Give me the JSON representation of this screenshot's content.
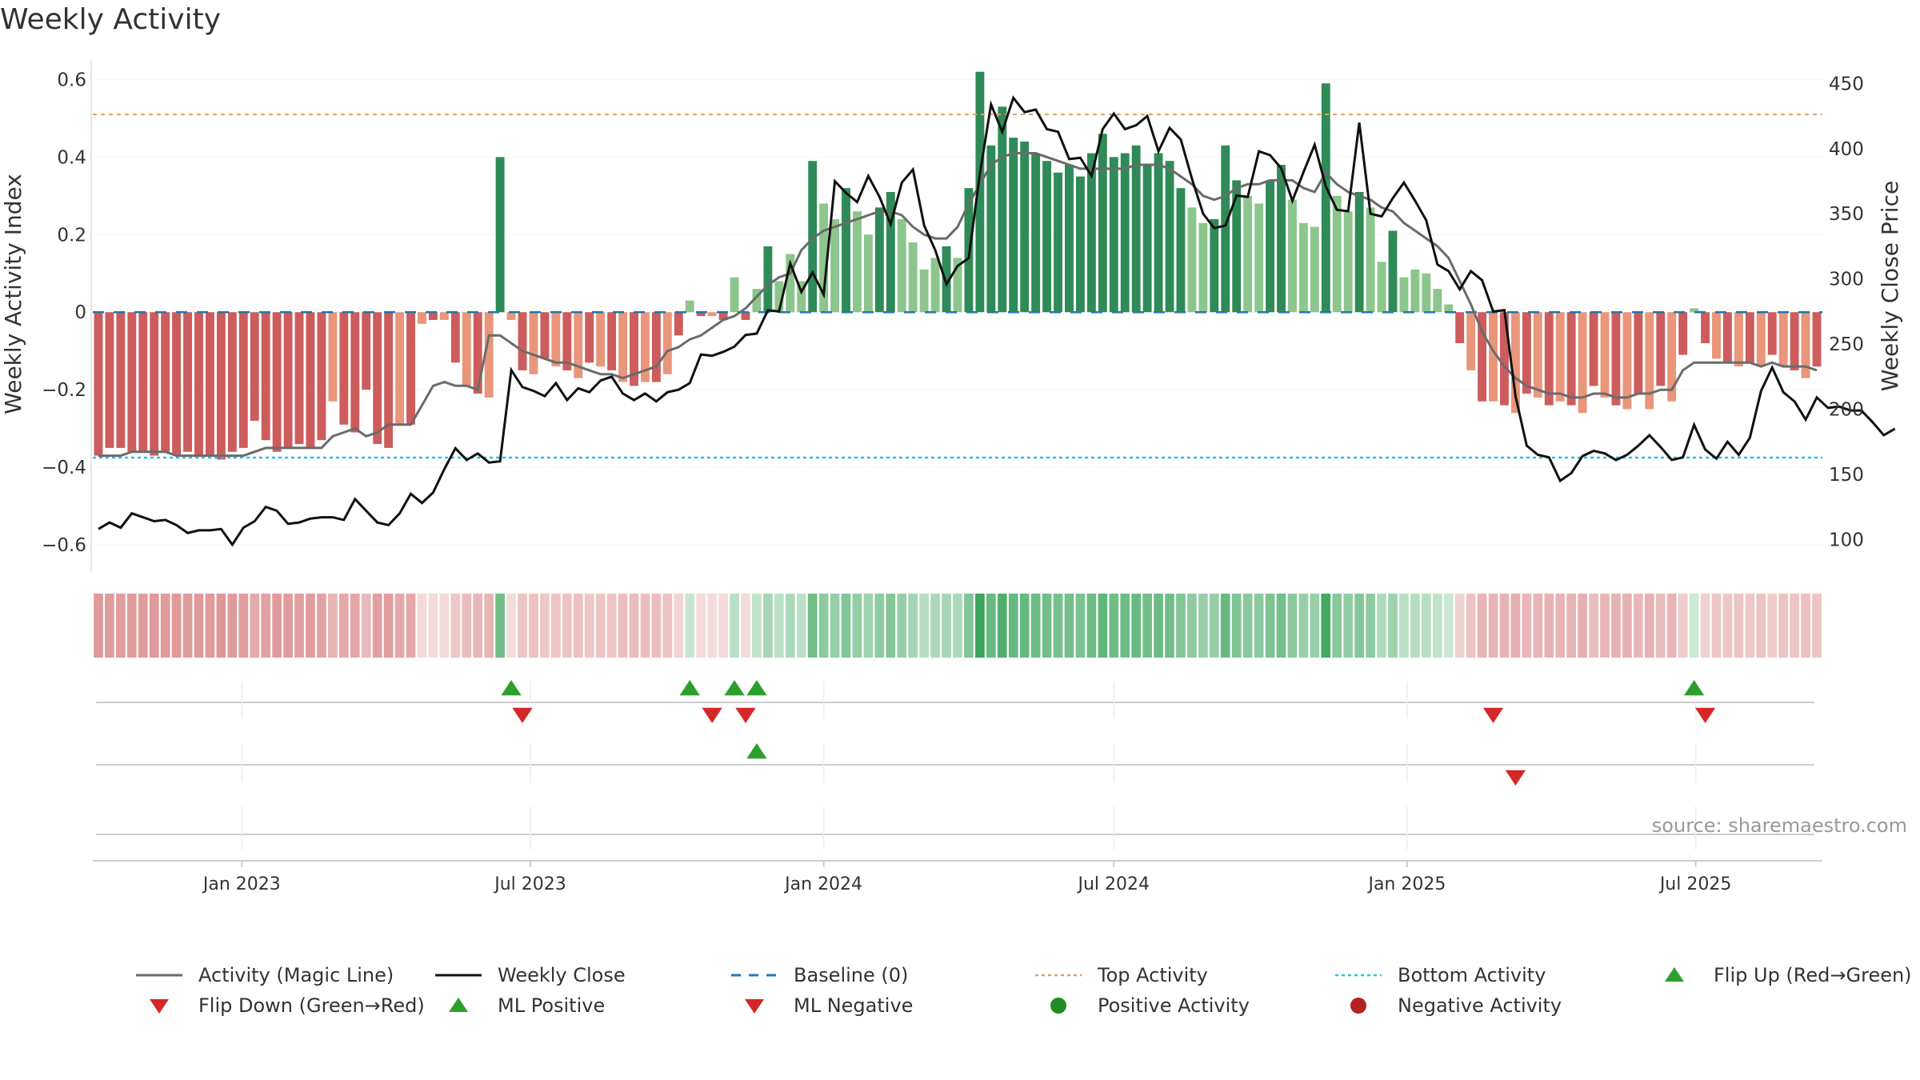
{
  "title": "Weekly Activity",
  "colors": {
    "green_strong": "#2e8b57",
    "green_light": "#8cc68c",
    "red_strong": "#cd5c5c",
    "red_light": "#e9967a",
    "magic_line": "#6b6b6b",
    "weekly_close": "#111111",
    "baseline": "#1f77b4",
    "top_activity": "#e0a060",
    "bottom_activity": "#26c6da",
    "flip_up": "#2ca02c",
    "flip_down": "#d62728",
    "positive_dot": "#228b22",
    "negative_dot": "#b22222"
  },
  "source": "source: sharemaestro.com",
  "chart_data": {
    "type": "bar",
    "title": "Weekly Activity",
    "x_start": "2022-10-03",
    "x_step_days": 7,
    "date_ticks": [
      "Jan 2023",
      "Jul 2023",
      "Jan 2024",
      "Jul 2024",
      "Jan 2025",
      "Jul 2025"
    ],
    "left_axis": {
      "label": "Weekly Activity Index",
      "ticks": [
        "0.6",
        "0.4",
        "0.2",
        "0",
        "−0.2",
        "−0.4",
        "−0.6"
      ],
      "ylim": [
        -0.67,
        0.64
      ]
    },
    "right_axis": {
      "label": "Weekly Close Price",
      "ticks": [
        "450",
        "400",
        "350",
        "300",
        "250",
        "200",
        "150",
        "100"
      ],
      "ylim": [
        75,
        465
      ]
    },
    "top_activity": 0.51,
    "bottom_activity": -0.375,
    "baseline": 0,
    "activity": [
      -0.37,
      -0.35,
      -0.35,
      -0.36,
      -0.36,
      -0.37,
      -0.36,
      -0.37,
      -0.36,
      -0.37,
      -0.37,
      -0.38,
      -0.36,
      -0.35,
      -0.28,
      -0.33,
      -0.36,
      -0.35,
      -0.34,
      -0.35,
      -0.33,
      -0.23,
      -0.29,
      -0.31,
      -0.2,
      -0.34,
      -0.35,
      -0.29,
      -0.29,
      -0.03,
      -0.02,
      -0.02,
      -0.13,
      -0.19,
      -0.21,
      -0.22,
      0.4,
      -0.02,
      -0.15,
      -0.16,
      -0.12,
      -0.14,
      -0.15,
      -0.17,
      -0.13,
      -0.14,
      -0.15,
      -0.18,
      -0.19,
      -0.18,
      -0.18,
      -0.16,
      -0.06,
      0.03,
      -0.01,
      -0.01,
      -0.02,
      0.09,
      -0.02,
      0.06,
      0.17,
      0.08,
      0.15,
      0.08,
      0.39,
      0.28,
      0.24,
      0.32,
      0.26,
      0.2,
      0.27,
      0.31,
      0.24,
      0.18,
      0.11,
      0.14,
      0.17,
      0.14,
      0.32,
      0.62,
      0.43,
      0.53,
      0.45,
      0.44,
      0.41,
      0.39,
      0.36,
      0.38,
      0.35,
      0.41,
      0.46,
      0.4,
      0.41,
      0.43,
      0.38,
      0.41,
      0.39,
      0.32,
      0.27,
      0.23,
      0.24,
      0.43,
      0.34,
      0.3,
      0.28,
      0.34,
      0.38,
      0.29,
      0.23,
      0.22,
      0.59,
      0.3,
      0.26,
      0.31,
      0.27,
      0.13,
      0.21,
      0.09,
      0.11,
      0.1,
      0.06,
      0.02,
      -0.08,
      -0.15,
      -0.23,
      -0.23,
      -0.24,
      -0.26,
      -0.21,
      -0.22,
      -0.24,
      -0.23,
      -0.24,
      -0.26,
      -0.19,
      -0.22,
      -0.24,
      -0.25,
      -0.21,
      -0.25,
      -0.19,
      -0.23,
      -0.11,
      0.01,
      -0.08,
      -0.12,
      -0.13,
      -0.14,
      -0.13,
      -0.14,
      -0.11,
      -0.14,
      -0.15,
      -0.17,
      -0.14
    ],
    "magic_line": [
      -0.37,
      -0.37,
      -0.37,
      -0.36,
      -0.36,
      -0.36,
      -0.36,
      -0.37,
      -0.37,
      -0.37,
      -0.37,
      -0.37,
      -0.37,
      -0.37,
      -0.36,
      -0.35,
      -0.35,
      -0.35,
      -0.35,
      -0.35,
      -0.35,
      -0.32,
      -0.31,
      -0.3,
      -0.32,
      -0.31,
      -0.29,
      -0.29,
      -0.29,
      -0.24,
      -0.19,
      -0.18,
      -0.19,
      -0.19,
      -0.2,
      -0.06,
      -0.06,
      -0.08,
      -0.1,
      -0.11,
      -0.12,
      -0.13,
      -0.13,
      -0.14,
      -0.15,
      -0.16,
      -0.16,
      -0.17,
      -0.16,
      -0.15,
      -0.14,
      -0.1,
      -0.09,
      -0.07,
      -0.06,
      -0.04,
      -0.02,
      -0.01,
      0.01,
      0.04,
      0.07,
      0.09,
      0.1,
      0.16,
      0.19,
      0.21,
      0.22,
      0.23,
      0.24,
      0.25,
      0.26,
      0.26,
      0.25,
      0.22,
      0.2,
      0.19,
      0.19,
      0.22,
      0.28,
      0.33,
      0.38,
      0.4,
      0.41,
      0.41,
      0.41,
      0.4,
      0.39,
      0.38,
      0.37,
      0.37,
      0.37,
      0.37,
      0.37,
      0.38,
      0.38,
      0.38,
      0.37,
      0.35,
      0.33,
      0.3,
      0.29,
      0.3,
      0.32,
      0.33,
      0.33,
      0.34,
      0.34,
      0.34,
      0.32,
      0.31,
      0.36,
      0.33,
      0.31,
      0.3,
      0.29,
      0.27,
      0.26,
      0.23,
      0.21,
      0.19,
      0.17,
      0.14,
      0.08,
      0.02,
      -0.05,
      -0.1,
      -0.14,
      -0.17,
      -0.19,
      -0.2,
      -0.21,
      -0.21,
      -0.22,
      -0.22,
      -0.21,
      -0.21,
      -0.22,
      -0.22,
      -0.21,
      -0.21,
      -0.2,
      -0.2,
      -0.15,
      -0.13,
      -0.13,
      -0.13,
      -0.13,
      -0.13,
      -0.13,
      -0.14,
      -0.13,
      -0.14,
      -0.14,
      -0.14,
      -0.15
    ],
    "weekly_close": [
      108,
      113,
      109,
      120,
      117,
      114,
      115,
      111,
      105,
      107,
      107,
      108,
      96,
      109,
      114,
      125,
      122,
      112,
      113,
      116,
      117,
      117,
      115,
      131,
      122,
      113,
      111,
      120,
      135,
      128,
      136,
      154,
      170,
      161,
      166,
      159,
      160,
      230,
      217,
      214,
      210,
      220,
      207,
      216,
      213,
      222,
      225,
      212,
      207,
      212,
      206,
      213,
      215,
      220,
      242,
      241,
      244,
      248,
      257,
      258,
      276,
      275,
      312,
      290,
      305,
      288,
      375,
      366,
      359,
      379,
      363,
      342,
      374,
      384,
      341,
      322,
      296,
      310,
      316,
      381,
      434,
      413,
      439,
      428,
      430,
      415,
      413,
      392,
      393,
      379,
      415,
      427,
      415,
      418,
      425,
      398,
      416,
      407,
      377,
      350,
      339,
      341,
      364,
      363,
      398,
      395,
      385,
      360,
      382,
      403,
      371,
      353,
      352,
      420,
      350,
      348,
      362,
      374,
      360,
      345,
      311,
      306,
      292,
      306,
      299,
      275,
      276,
      210,
      172,
      165,
      163,
      145,
      151,
      164,
      168,
      166,
      161,
      165,
      172,
      180,
      171,
      161,
      163,
      188,
      169,
      162,
      175,
      165,
      178,
      214,
      232,
      213,
      206,
      192,
      209,
      201,
      202,
      199,
      199,
      190,
      180,
      185
    ]
  },
  "strip_panel": {
    "name": "activity-strip"
  },
  "signal_rows": {
    "flip_up": [
      "2023-06-19",
      "2023-10-09",
      "2023-11-06",
      "2023-11-20",
      "2025-06-30"
    ],
    "flip_down": [
      "2023-06-26",
      "2023-10-23",
      "2023-11-13",
      "2025-02-24",
      "2025-07-07"
    ],
    "ml_positive": [
      "2023-11-20"
    ],
    "ml_negative": [
      "2025-03-10"
    ]
  },
  "legend": [
    {
      "label": "Activity (Magic Line)",
      "symbol": "line",
      "color_key": "magic_line"
    },
    {
      "label": "Weekly Close",
      "symbol": "line",
      "color_key": "weekly_close"
    },
    {
      "label": "Baseline (0)",
      "symbol": "dashed",
      "color_key": "baseline"
    },
    {
      "label": "Top Activity",
      "symbol": "dotted",
      "color_key": "top_activity"
    },
    {
      "label": "Bottom Activity",
      "symbol": "dotted",
      "color_key": "bottom_activity"
    },
    {
      "label": "Flip Up (Red→Green)",
      "symbol": "tri-up",
      "color_key": "flip_up"
    },
    {
      "label": "Flip Down (Green→Red)",
      "symbol": "tri-down",
      "color_key": "flip_down"
    },
    {
      "label": "ML Positive",
      "symbol": "tri-up",
      "color_key": "flip_up"
    },
    {
      "label": "ML Negative",
      "symbol": "tri-down",
      "color_key": "flip_down"
    },
    {
      "label": "Positive Activity",
      "symbol": "dot",
      "color_key": "positive_dot"
    },
    {
      "label": "Negative Activity",
      "symbol": "dot",
      "color_key": "negative_dot"
    }
  ]
}
